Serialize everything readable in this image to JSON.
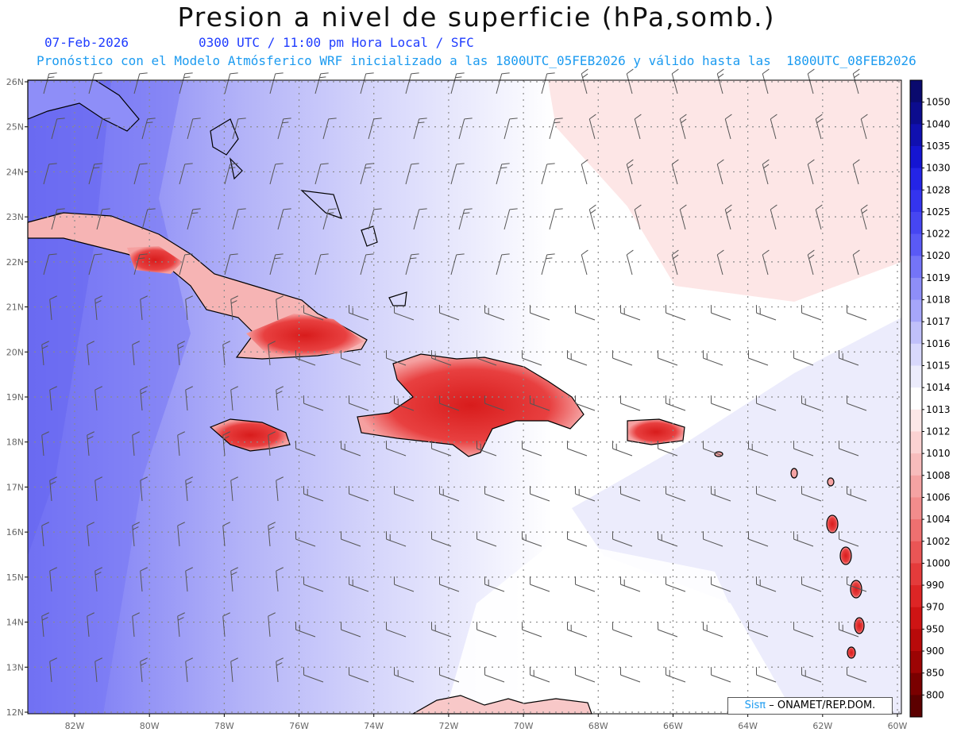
{
  "header": {
    "title": "Presion a nivel de superficie (hPa,somb.)",
    "date": "07-Feb-2026",
    "valid_time": "0300 UTC / 11:00 pm Hora Local / SFC",
    "model_note": "Pronóstico con el Modelo Atmósferico WRF inicializado a las 1800UTC_05FEB2026 y válido hasta las  1800UTC_08FEB2026"
  },
  "map": {
    "lat_labels": [
      "26N",
      "25N",
      "24N",
      "23N",
      "22N",
      "21N",
      "20N",
      "19N",
      "18N",
      "17N",
      "16N",
      "15N",
      "14N",
      "13N",
      "12N"
    ],
    "lon_labels": [
      "82W",
      "80W",
      "78W",
      "76W",
      "74W",
      "72W",
      "70W",
      "68W",
      "66W",
      "64W",
      "62W",
      "60W"
    ]
  },
  "colorbar": {
    "levels": [
      "1050",
      "1040",
      "1035",
      "1030",
      "1028",
      "1025",
      "1022",
      "1020",
      "1019",
      "1018",
      "1017",
      "1016",
      "1015",
      "1014",
      "1013",
      "1012",
      "1010",
      "1008",
      "1006",
      "1004",
      "1002",
      "1000",
      "990",
      "970",
      "950",
      "900",
      "850",
      "800"
    ],
    "colors": [
      "#0a0a6e",
      "#0c0c8e",
      "#1010b0",
      "#1515d2",
      "#2424e6",
      "#3434ee",
      "#4646f2",
      "#5a5af6",
      "#7474f8",
      "#8e8ef8",
      "#a6a6fa",
      "#c0c0fa",
      "#d8d8fc",
      "#ececfc",
      "#ffffff",
      "#fde8e8",
      "#fbd2d2",
      "#f8bcbc",
      "#f5a3a3",
      "#f28c8c",
      "#ee7070",
      "#e95555",
      "#e43b3b",
      "#dd2525",
      "#cf1414",
      "#b80a0a",
      "#9c0404",
      "#7a0000",
      "#5c0000"
    ]
  },
  "credit": {
    "brand": "Sisπ",
    "text": "– ONAMET/REP.DOM."
  }
}
